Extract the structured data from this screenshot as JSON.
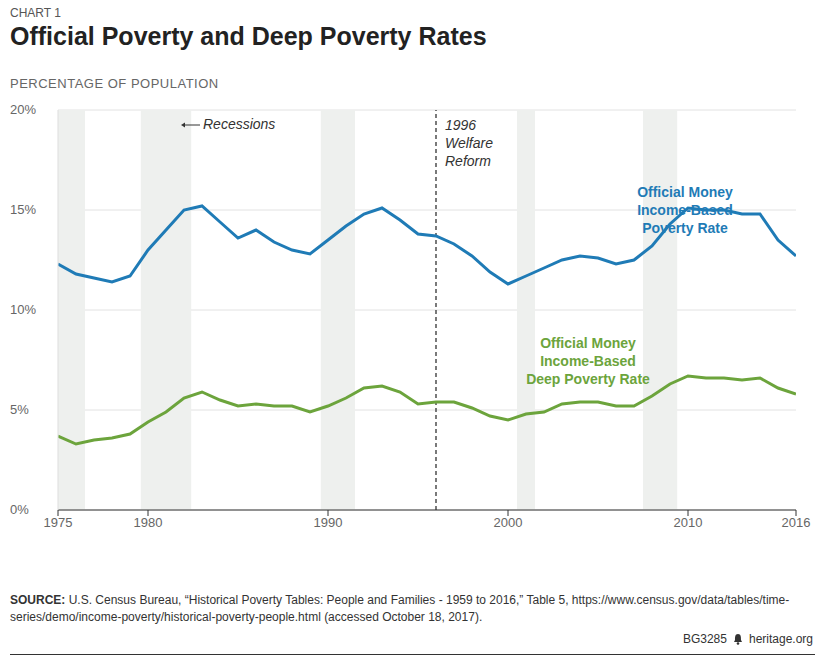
{
  "chart_data": {
    "type": "line",
    "chart_label": "CHART 1",
    "title": "Official Poverty and Deep Poverty Rates",
    "subtitle": "PERCENTAGE OF POPULATION",
    "x": [
      1975,
      1976,
      1977,
      1978,
      1979,
      1980,
      1981,
      1982,
      1983,
      1984,
      1985,
      1986,
      1987,
      1988,
      1989,
      1990,
      1991,
      1992,
      1993,
      1994,
      1995,
      1996,
      1997,
      1998,
      1999,
      2000,
      2001,
      2002,
      2003,
      2004,
      2005,
      2006,
      2007,
      2008,
      2009,
      2010,
      2011,
      2012,
      2013,
      2014,
      2015,
      2016
    ],
    "series": [
      {
        "name": "Official Money Income-Based Poverty Rate",
        "color": "#1f7bb6",
        "values": [
          12.3,
          11.8,
          11.6,
          11.4,
          11.7,
          13.0,
          14.0,
          15.0,
          15.2,
          14.4,
          13.6,
          14.0,
          13.4,
          13.0,
          12.8,
          13.5,
          14.2,
          14.8,
          15.1,
          14.5,
          13.8,
          13.7,
          13.3,
          12.7,
          11.9,
          11.3,
          11.7,
          12.1,
          12.5,
          12.7,
          12.6,
          12.3,
          12.5,
          13.2,
          14.3,
          15.1,
          15.0,
          15.0,
          14.8,
          14.8,
          13.5,
          12.7
        ]
      },
      {
        "name": "Official Money Income-Based Deep Poverty Rate",
        "color": "#6ca43c",
        "values": [
          3.7,
          3.3,
          3.5,
          3.6,
          3.8,
          4.4,
          4.9,
          5.6,
          5.9,
          5.5,
          5.2,
          5.3,
          5.2,
          5.2,
          4.9,
          5.2,
          5.6,
          6.1,
          6.2,
          5.9,
          5.3,
          5.4,
          5.4,
          5.1,
          4.7,
          4.5,
          4.8,
          4.9,
          5.3,
          5.4,
          5.4,
          5.2,
          5.2,
          5.7,
          6.3,
          6.7,
          6.6,
          6.6,
          6.5,
          6.6,
          6.1,
          5.8
        ]
      }
    ],
    "xlim": [
      1975,
      2016
    ],
    "xticks": [
      1975,
      1980,
      1990,
      2000,
      2010,
      2016
    ],
    "ylim": [
      0,
      20
    ],
    "yticks": [
      {
        "value": 0,
        "label": "0%"
      },
      {
        "value": 5,
        "label": "5%"
      },
      {
        "value": 10,
        "label": "10%"
      },
      {
        "value": 15,
        "label": "15%"
      },
      {
        "value": 20,
        "label": "20%"
      }
    ],
    "grid": true,
    "recessions_label": "Recessions",
    "recessions": [
      {
        "start": 1975,
        "end": 1976.5
      },
      {
        "start": 1979.6,
        "end": 1982.4
      },
      {
        "start": 1989.6,
        "end": 1991.5
      },
      {
        "start": 2000.5,
        "end": 2001.5
      },
      {
        "start": 2007.5,
        "end": 2009.4
      }
    ],
    "annotation": {
      "x": 1996,
      "lines": [
        "1996",
        "Welfare",
        "Reform"
      ]
    },
    "source_label": "SOURCE:",
    "source": "U.S. Census Bureau, “Historical Poverty Tables: People and Families - 1959 to 2016,” Table 5, https://www.census.gov/data/tables/time-series/demo/income-poverty/historical-poverty-people.html (accessed October 18, 2017).",
    "footer_code": "BG3285",
    "footer_site": "heritage.org"
  }
}
